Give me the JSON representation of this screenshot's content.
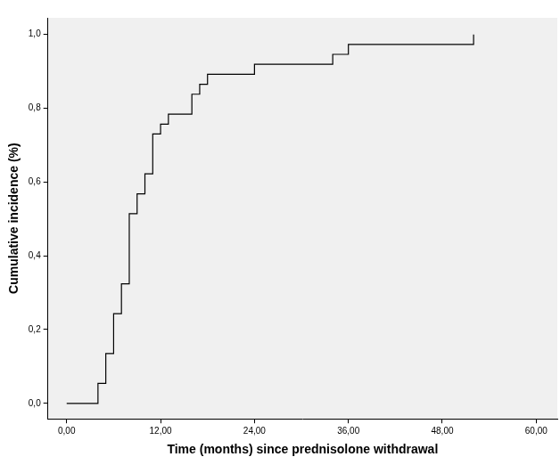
{
  "chart_data": {
    "type": "step",
    "x_label": "Time (months) since prednisolone withdrawal",
    "y_label": "Cumulative incidence (%)",
    "x": [
      0,
      4,
      5,
      6,
      7,
      8,
      9,
      10,
      11,
      12,
      13,
      16,
      17,
      18,
      24,
      34,
      36,
      52
    ],
    "values": [
      0,
      0.054,
      0.135,
      0.243,
      0.324,
      0.514,
      0.568,
      0.622,
      0.73,
      0.757,
      0.784,
      0.838,
      0.865,
      0.892,
      0.919,
      0.946,
      0.973,
      1.0
    ],
    "color": "#000000",
    "xlim": [
      -2.4,
      62.7
    ],
    "xticks": [
      {
        "value": 0,
        "label": "0,00"
      },
      {
        "value": 12,
        "label": "12,00"
      },
      {
        "value": 24,
        "label": "24,00"
      },
      {
        "value": 36,
        "label": "36,00"
      },
      {
        "value": 48,
        "label": "48,00"
      },
      {
        "value": 60,
        "label": "60,00"
      }
    ],
    "ylim": [
      -0.042,
      1.045
    ],
    "yticks": [
      {
        "value": 0,
        "label": "0,0"
      },
      {
        "value": 0.2,
        "label": "0,2"
      },
      {
        "value": 0.4,
        "label": "0,4"
      },
      {
        "value": 0.6,
        "label": "0,6"
      },
      {
        "value": 0.8,
        "label": "0,8"
      },
      {
        "value": 1.0,
        "label": "1,0"
      }
    ],
    "grid": false
  }
}
